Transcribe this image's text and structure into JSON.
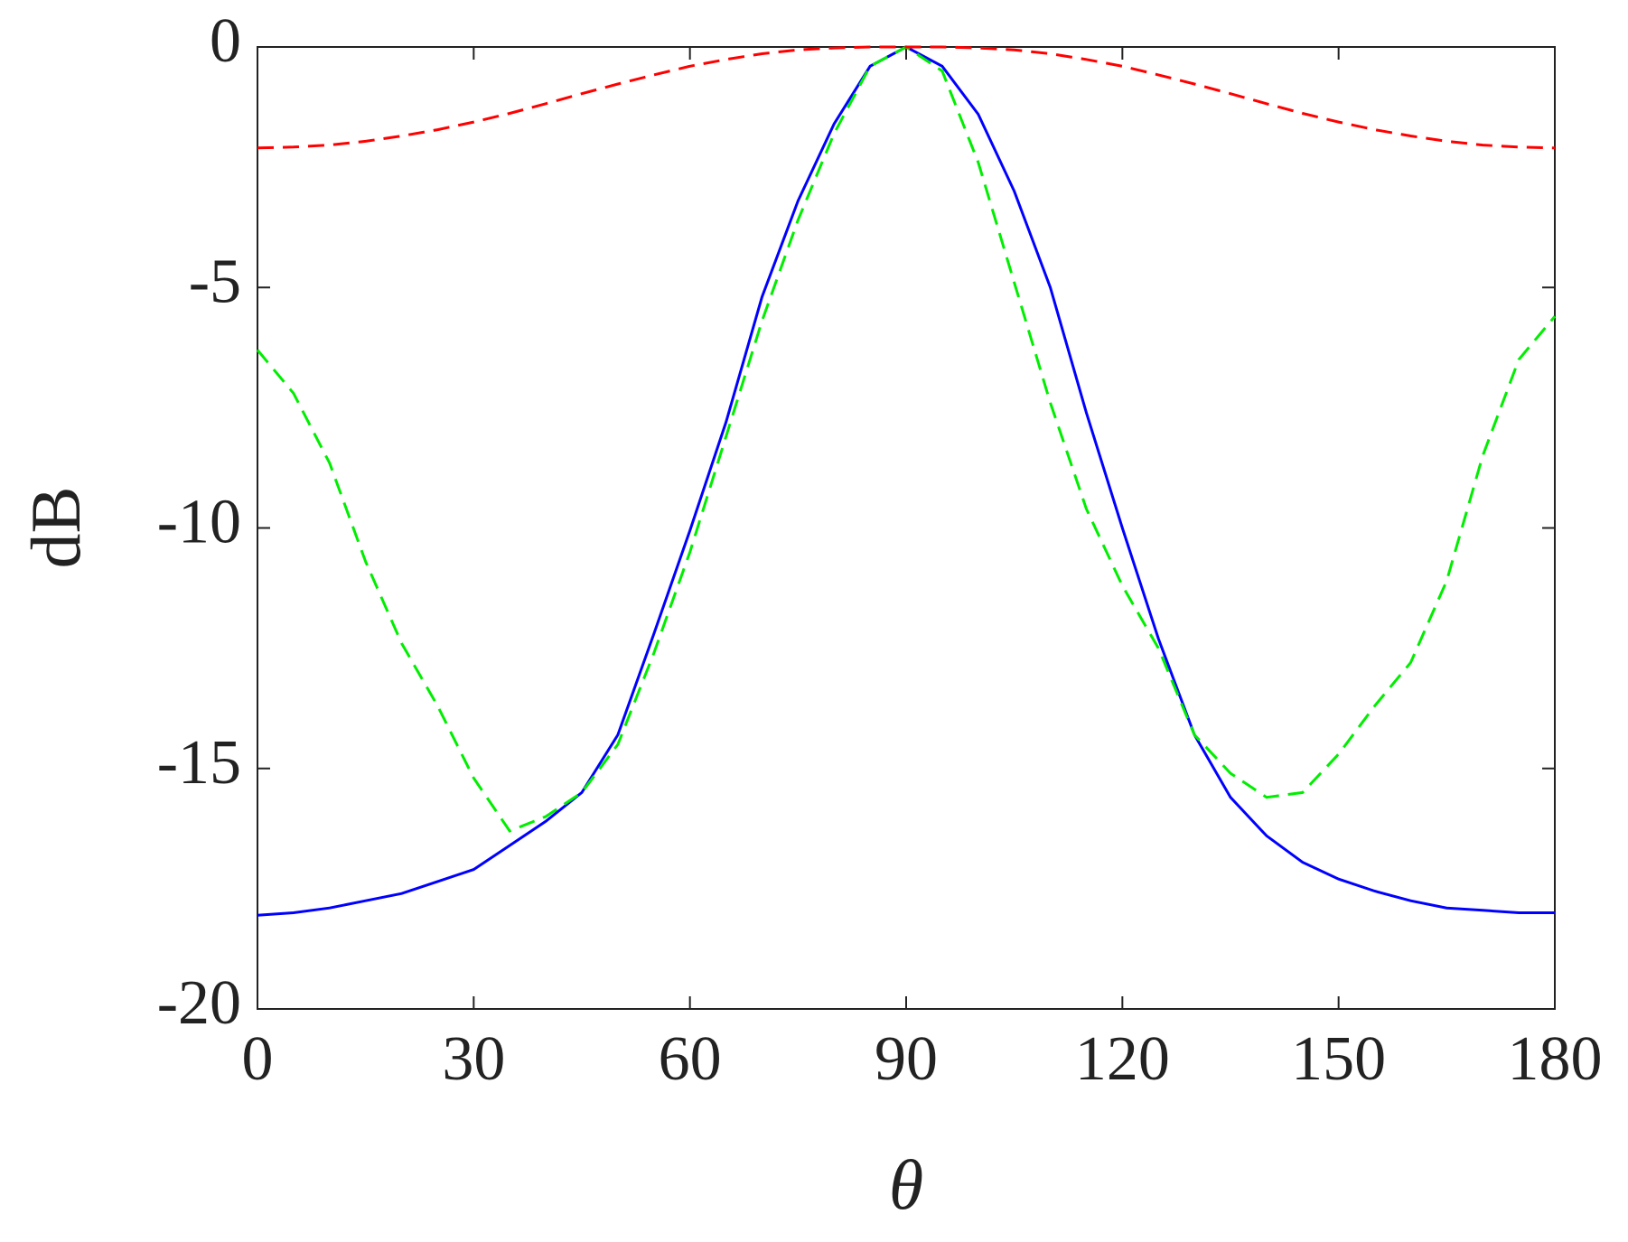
{
  "chart_data": {
    "type": "line",
    "xlabel": "θ",
    "ylabel": "dB",
    "x": [
      0,
      5,
      10,
      15,
      20,
      25,
      30,
      35,
      40,
      45,
      50,
      55,
      60,
      65,
      70,
      75,
      80,
      85,
      90,
      95,
      100,
      105,
      110,
      115,
      120,
      125,
      130,
      135,
      140,
      145,
      150,
      155,
      160,
      165,
      170,
      175,
      180
    ],
    "series": [
      {
        "color": "#0000ff",
        "linestyle": "solid",
        "values": [
          -18.05,
          -18.0,
          -17.9,
          -17.75,
          -17.6,
          -17.35,
          -17.1,
          -16.6,
          -16.1,
          -15.5,
          -14.3,
          -12.2,
          -10.05,
          -7.8,
          -5.2,
          -3.2,
          -1.6,
          -0.4,
          0,
          -0.4,
          -1.4,
          -3.0,
          -5.0,
          -7.6,
          -10.0,
          -12.3,
          -14.3,
          -15.6,
          -16.4,
          -16.95,
          -17.3,
          -17.55,
          -17.75,
          -17.9,
          -17.95,
          -18.0,
          -18.0
        ]
      },
      {
        "color": "#00ee00",
        "linestyle": "dashed",
        "values": [
          -6.3,
          -7.2,
          -8.65,
          -10.7,
          -12.4,
          -13.7,
          -15.2,
          -16.3,
          -16.0,
          -15.5,
          -14.5,
          -12.6,
          -10.5,
          -8.1,
          -5.7,
          -3.6,
          -1.8,
          -0.4,
          0,
          -0.5,
          -2.4,
          -4.9,
          -7.4,
          -9.6,
          -11.2,
          -12.5,
          -14.3,
          -15.1,
          -15.6,
          -15.5,
          -14.7,
          -13.7,
          -12.8,
          -11.1,
          -8.5,
          -6.5,
          -5.6
        ]
      },
      {
        "color": "#ff0000",
        "linestyle": "dashed",
        "values": [
          -2.1,
          -2.08,
          -2.04,
          -1.96,
          -1.85,
          -1.72,
          -1.56,
          -1.38,
          -1.18,
          -0.97,
          -0.77,
          -0.58,
          -0.4,
          -0.26,
          -0.14,
          -0.06,
          -0.02,
          0,
          0,
          0,
          -0.02,
          -0.06,
          -0.14,
          -0.26,
          -0.4,
          -0.58,
          -0.77,
          -0.97,
          -1.18,
          -1.38,
          -1.56,
          -1.72,
          -1.85,
          -1.96,
          -2.04,
          -2.08,
          -2.1
        ]
      }
    ],
    "xlim": [
      0,
      180
    ],
    "xticks": [
      0,
      30,
      60,
      90,
      120,
      150,
      180
    ],
    "ylim": [
      -20,
      0
    ],
    "yticks": [
      -20,
      -15,
      -10,
      -5,
      0
    ],
    "grid": false
  }
}
